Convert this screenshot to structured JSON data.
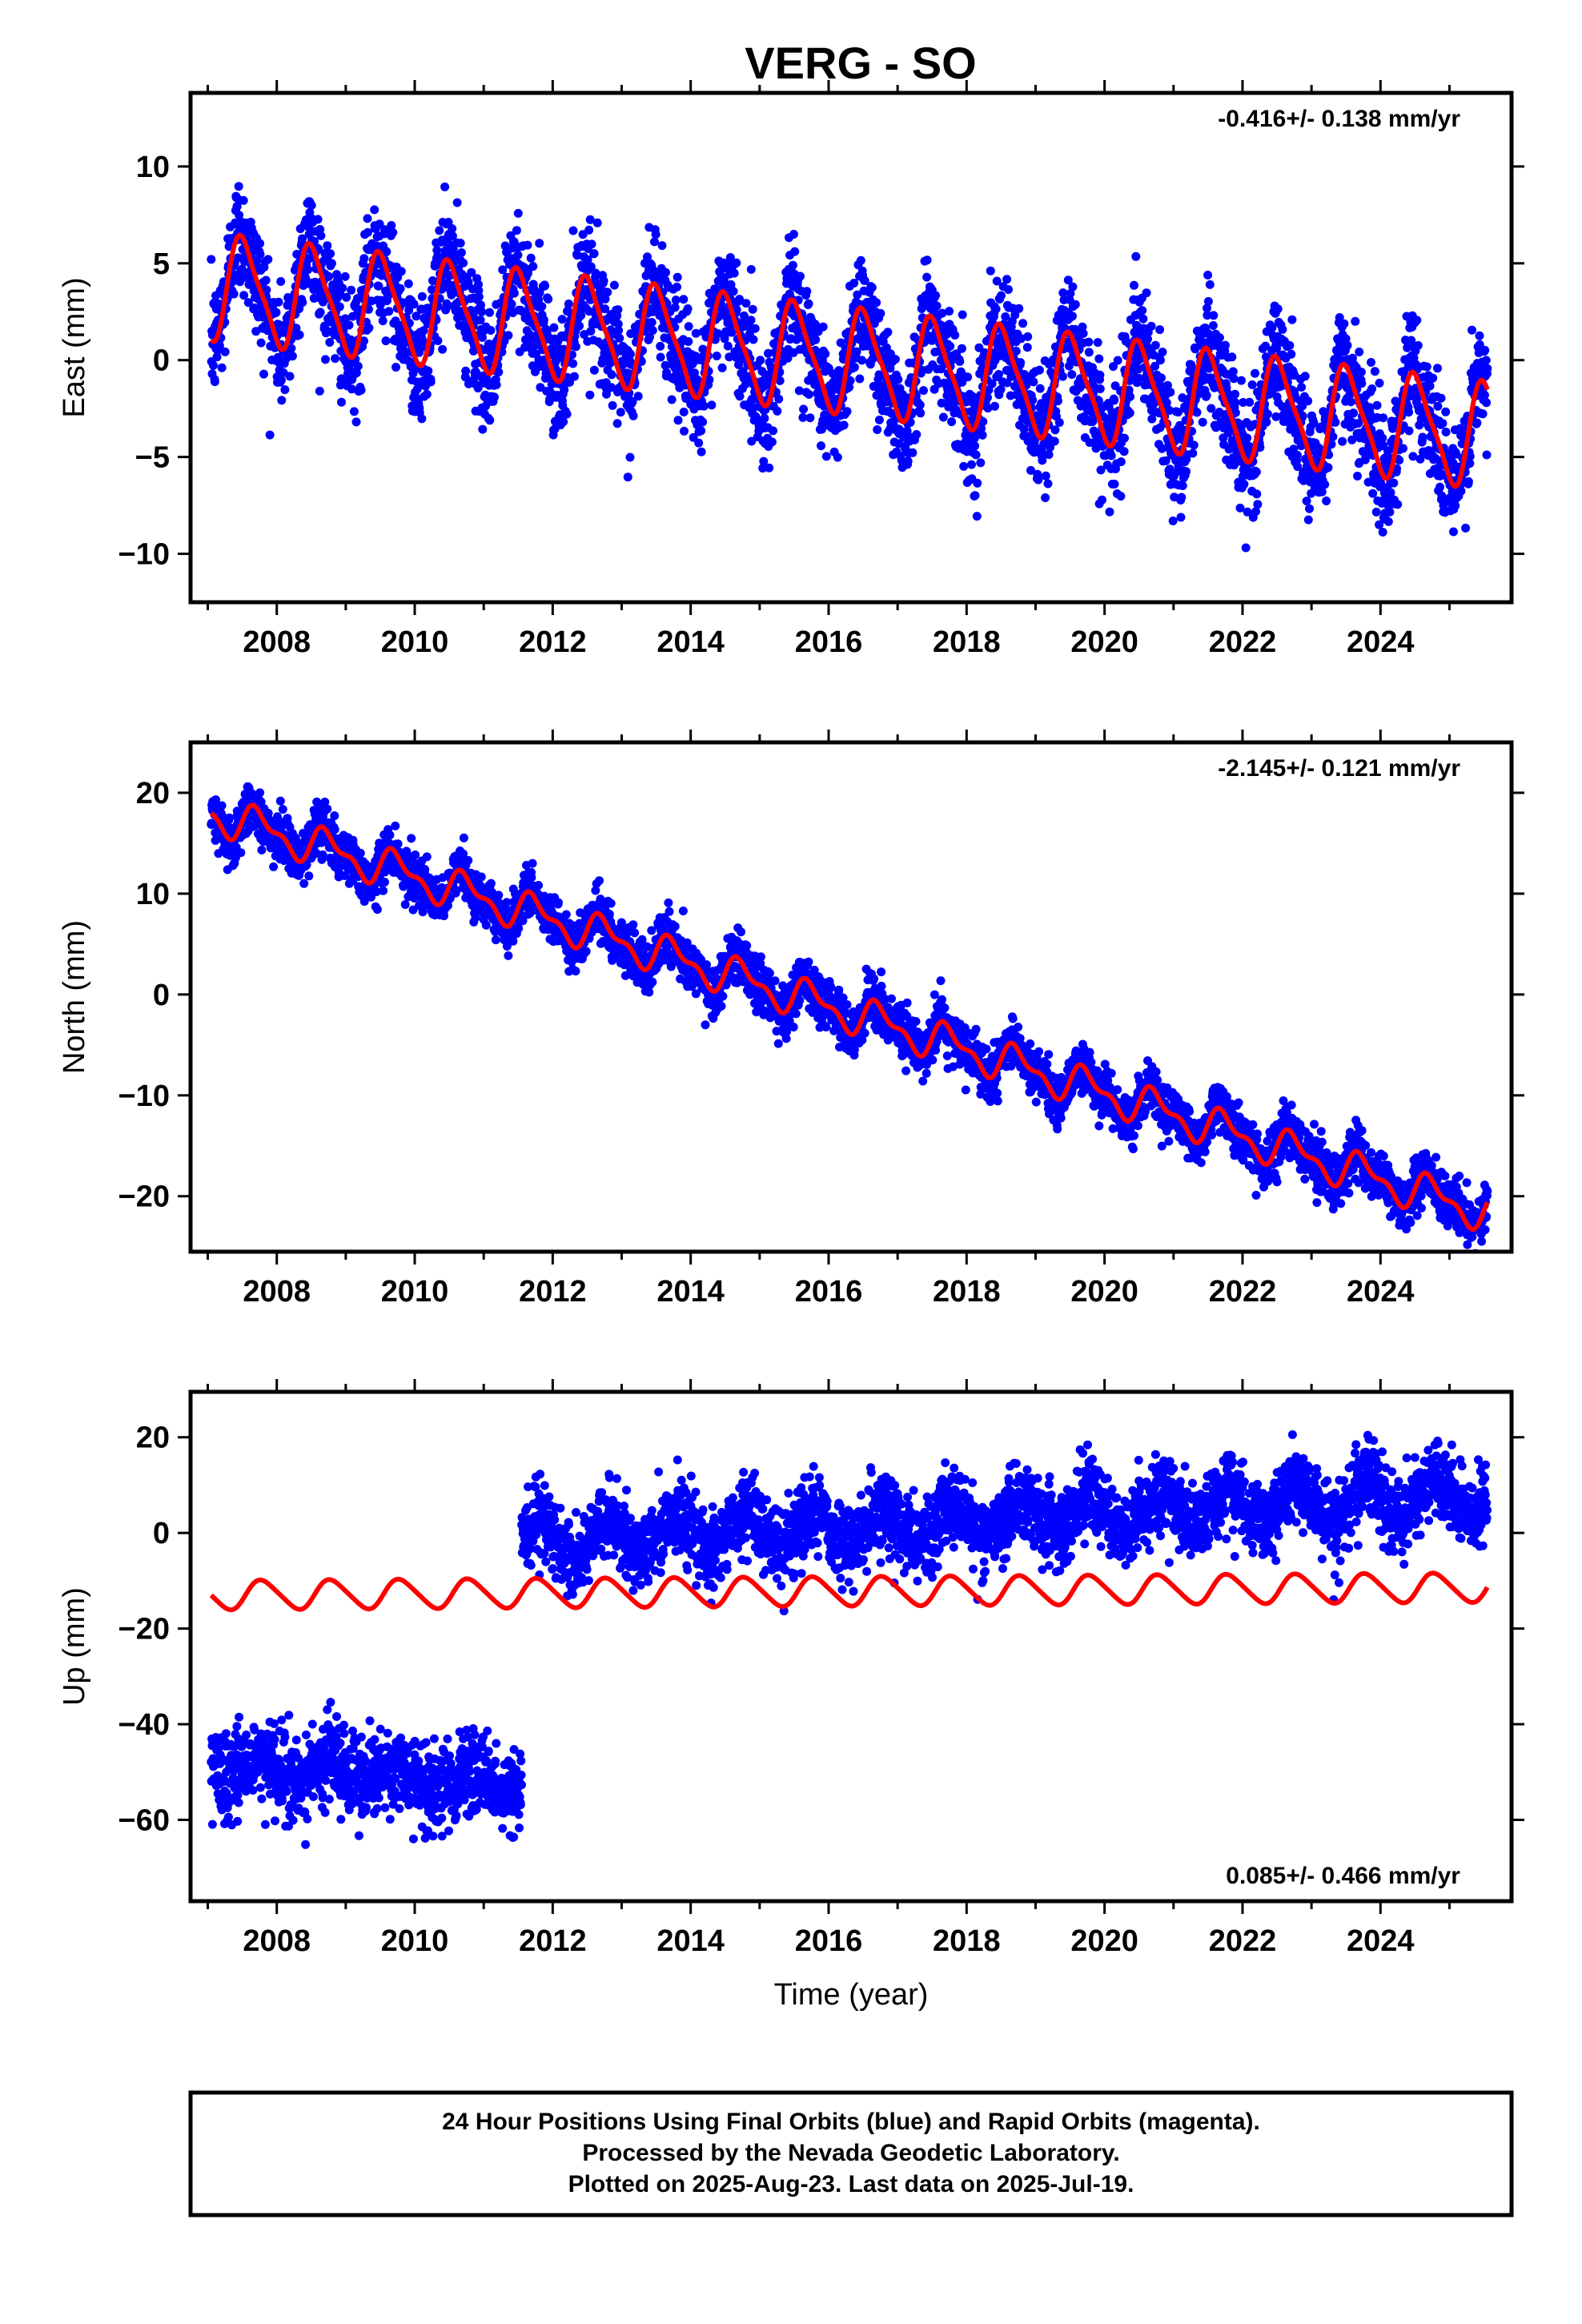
{
  "title": "VERG - SO",
  "xlabel": "Time (year)",
  "footer": [
    "24 Hour Positions Using Final Orbits (blue) and Rapid Orbits (magenta).",
    "Processed by the Nevada Geodetic Laboratory.",
    "Plotted on 2025-Aug-23. Last data on 2025-Jul-19."
  ],
  "colors": {
    "data": "#0000ff",
    "model": "#ff0000",
    "frame": "#000000"
  },
  "chart_data": [
    {
      "type": "scatter",
      "ylabel": "East (mm)",
      "rate_label": "-0.416+/- 0.138 mm/yr",
      "xlim": [
        2006.75,
        2025.9
      ],
      "ylim": [
        -12.5,
        13.8
      ],
      "x_ticks": [
        2008,
        2010,
        2012,
        2014,
        2016,
        2018,
        2020,
        2022,
        2024
      ],
      "y_ticks": [
        10,
        5,
        0,
        -5,
        -10
      ],
      "series": [
        {
          "kind": "daily positions",
          "color": "#0000ff",
          "model": {
            "start": 2007.05,
            "end": 2025.55,
            "trend_mm_per_yr": -0.416,
            "offset": 3.8,
            "amp_annual": 2.6,
            "amp_semiannual": 0.6,
            "phase_days": 100,
            "noise_mm": 1.5
          }
        },
        {
          "kind": "fit",
          "color": "#ff0000",
          "model": {
            "start": 2007.05,
            "end": 2025.55,
            "trend_mm_per_yr": -0.416,
            "offset": 3.8,
            "amp_annual": 2.6,
            "amp_semiannual": 0.6,
            "phase_days": 100
          }
        }
      ]
    },
    {
      "type": "scatter",
      "ylabel": "North (mm)",
      "rate_label": "-2.145+/- 0.121 mm/yr",
      "xlim": [
        2006.75,
        2025.9
      ],
      "ylim": [
        -25.5,
        25
      ],
      "x_ticks": [
        2008,
        2010,
        2012,
        2014,
        2016,
        2018,
        2020,
        2022,
        2024
      ],
      "y_ticks": [
        20,
        10,
        0,
        -10,
        -20
      ],
      "series": [
        {
          "kind": "daily positions",
          "color": "#0000ff",
          "model": {
            "start": 2007.05,
            "end": 2025.55,
            "trend_mm_per_yr": -2.145,
            "offset": 18.0,
            "amp_annual": 1.6,
            "amp_semiannual": 0.8,
            "phase_days": 180,
            "noise_mm": 1.2
          }
        },
        {
          "kind": "fit",
          "color": "#ff0000",
          "model": {
            "start": 2007.05,
            "end": 2025.55,
            "trend_mm_per_yr": -2.145,
            "offset": 18.0,
            "amp_annual": 1.6,
            "amp_semiannual": 0.8,
            "phase_days": 180
          }
        }
      ]
    },
    {
      "type": "scatter",
      "ylabel": "Up (mm)",
      "rate_label": "0.085+/- 0.466 mm/yr",
      "xlim": [
        2006.75,
        2025.9
      ],
      "ylim": [
        -77,
        29.5
      ],
      "x_ticks": [
        2008,
        2010,
        2012,
        2014,
        2016,
        2018,
        2020,
        2022,
        2024
      ],
      "y_ticks": [
        20,
        0,
        -20,
        -40,
        -60
      ],
      "series": [
        {
          "kind": "daily positions 2007-2011",
          "color": "#0000ff",
          "model": {
            "start": 2007.05,
            "end": 2011.55,
            "trend_mm_per_yr": -1.0,
            "offset": -48.0,
            "amp_annual": 2.0,
            "amp_semiannual": 0.0,
            "phase_days": 200,
            "noise_mm": 4.5
          }
        },
        {
          "kind": "daily positions 2011-2025",
          "color": "#0000ff",
          "model": {
            "start": 2011.55,
            "end": 2025.55,
            "trend_mm_per_yr": 0.7,
            "offset": -2.0,
            "amp_annual": 4.0,
            "amp_semiannual": 0.0,
            "phase_days": 200,
            "noise_mm": 4.0
          }
        },
        {
          "kind": "fit",
          "color": "#ff0000",
          "model": {
            "start": 2007.05,
            "end": 2025.55,
            "trend_mm_per_yr": 0.085,
            "offset": -13.0,
            "amp_annual": 3.0,
            "amp_semiannual": 0.4,
            "phase_days": 200
          }
        }
      ]
    }
  ]
}
